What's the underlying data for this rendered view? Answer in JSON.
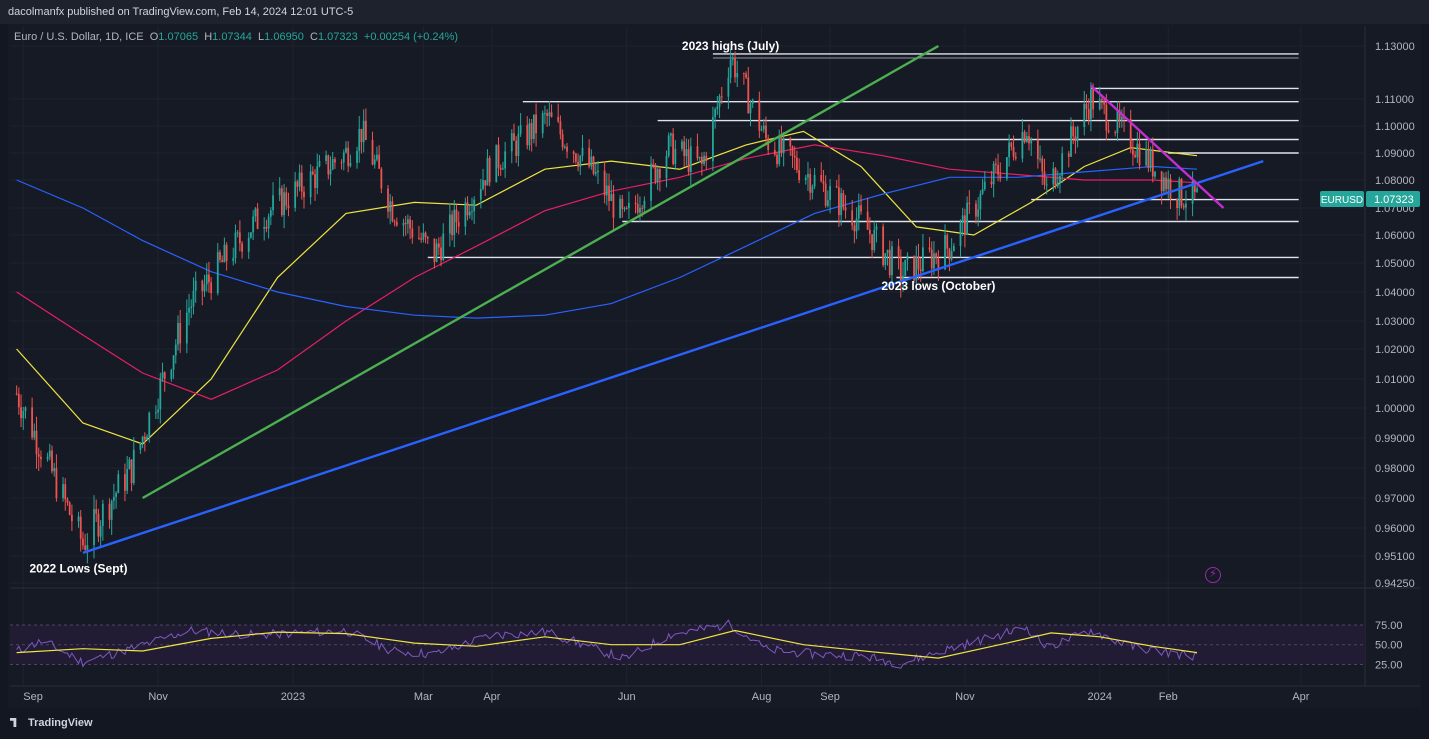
{
  "header": {
    "publisher_text": "dacolmanfx published on TradingView.com, Feb 14, 2024 12:01 UTC-5"
  },
  "symbol": {
    "description": "Euro / U.S. Dollar, 1D, ICE",
    "open_label": "O",
    "open": "1.07065",
    "high_label": "H",
    "high": "1.07344",
    "low_label": "L",
    "low": "1.06950",
    "close_label": "C",
    "close": "1.07323",
    "change": "+0.00254 (+0.24%)",
    "ticker": "EURUSD",
    "last_price": "1.07323"
  },
  "footer": {
    "brand": "TradingView"
  },
  "colors": {
    "background": "#131722",
    "grid": "#2a2e39",
    "candle_up": "#26a69a",
    "candle_down": "#ef5350",
    "ma_fast": "#f0e442",
    "ma_mid": "#e91e63",
    "ma_slow": "#2962ff",
    "trend_blue": "#2962ff",
    "trend_green": "#4caf50",
    "trend_magenta": "#c22ecf",
    "rsi": "#7e57c2",
    "rsi_signal": "#f0e442"
  },
  "chart_data": [
    {
      "type": "candlestick",
      "title": "Euro / U.S. Dollar, 1D, ICE",
      "x_tick_labels": [
        "Sep",
        "Nov",
        "2023",
        "Mar",
        "Apr",
        "Jun",
        "Aug",
        "Sep",
        "Nov",
        "2024",
        "Feb",
        "Apr"
      ],
      "x_tick_dates": [
        "2022-09-01",
        "2022-11-01",
        "2023-01-01",
        "2023-03-01",
        "2023-04-01",
        "2023-06-01",
        "2023-08-01",
        "2023-09-01",
        "2023-11-01",
        "2024-01-01",
        "2024-02-01",
        "2024-04-01"
      ],
      "y_tick_labels": [
        "1.13000",
        "1.11000",
        "1.10000",
        "1.09000",
        "1.08000",
        "1.07000",
        "1.06000",
        "1.05000",
        "1.04000",
        "1.03000",
        "1.02000",
        "1.01000",
        "1.00000",
        "0.99000",
        "0.98000",
        "0.97000",
        "0.96000",
        "0.95100",
        "0.94250"
      ],
      "y_ticks": [
        1.13,
        1.11,
        1.1,
        1.09,
        1.08,
        1.07,
        1.06,
        1.05,
        1.04,
        1.03,
        1.02,
        1.01,
        1.0,
        0.99,
        0.98,
        0.97,
        0.96,
        0.951,
        0.9425
      ],
      "price_key_points": [
        {
          "date": "2022-08-29",
          "close": 1.005
        },
        {
          "date": "2022-09-28",
          "close": 0.955
        },
        {
          "date": "2022-10-20",
          "close": 0.98
        },
        {
          "date": "2022-11-15",
          "close": 1.035
        },
        {
          "date": "2022-12-15",
          "close": 1.065
        },
        {
          "date": "2023-01-25",
          "close": 1.09
        },
        {
          "date": "2023-02-01",
          "close": 1.098
        },
        {
          "date": "2023-02-15",
          "close": 1.07
        },
        {
          "date": "2023-03-06",
          "close": 1.053
        },
        {
          "date": "2023-03-31",
          "close": 1.085
        },
        {
          "date": "2023-04-26",
          "close": 1.103
        },
        {
          "date": "2023-05-15",
          "close": 1.085
        },
        {
          "date": "2023-05-31",
          "close": 1.065
        },
        {
          "date": "2023-06-20",
          "close": 1.092
        },
        {
          "date": "2023-07-05",
          "close": 1.085
        },
        {
          "date": "2023-07-18",
          "close": 1.126
        },
        {
          "date": "2023-08-03",
          "close": 1.095
        },
        {
          "date": "2023-08-25",
          "close": 1.08
        },
        {
          "date": "2023-09-15",
          "close": 1.065
        },
        {
          "date": "2023-10-03",
          "close": 1.046
        },
        {
          "date": "2023-10-25",
          "close": 1.056
        },
        {
          "date": "2023-11-29",
          "close": 1.1
        },
        {
          "date": "2023-12-08",
          "close": 1.076
        },
        {
          "date": "2023-12-28",
          "close": 1.11
        },
        {
          "date": "2024-01-15",
          "close": 1.095
        },
        {
          "date": "2024-02-05",
          "close": 1.075
        },
        {
          "date": "2024-02-14",
          "close": 1.07323
        }
      ],
      "moving_averages": [
        {
          "name": "MA fast",
          "color": "#f0e442",
          "points": [
            {
              "date": "2022-08-29",
              "value": 1.02
            },
            {
              "date": "2022-09-28",
              "value": 0.995
            },
            {
              "date": "2022-10-25",
              "value": 0.988
            },
            {
              "date": "2022-11-25",
              "value": 1.01
            },
            {
              "date": "2022-12-25",
              "value": 1.045
            },
            {
              "date": "2023-01-25",
              "value": 1.068
            },
            {
              "date": "2023-02-25",
              "value": 1.072
            },
            {
              "date": "2023-03-25",
              "value": 1.071
            },
            {
              "date": "2023-04-25",
              "value": 1.084
            },
            {
              "date": "2023-05-25",
              "value": 1.087
            },
            {
              "date": "2023-06-25",
              "value": 1.084
            },
            {
              "date": "2023-07-25",
              "value": 1.093
            },
            {
              "date": "2023-08-20",
              "value": 1.098
            },
            {
              "date": "2023-09-15",
              "value": 1.085
            },
            {
              "date": "2023-10-10",
              "value": 1.063
            },
            {
              "date": "2023-11-05",
              "value": 1.06
            },
            {
              "date": "2023-12-01",
              "value": 1.072
            },
            {
              "date": "2023-12-25",
              "value": 1.085
            },
            {
              "date": "2024-01-15",
              "value": 1.092
            },
            {
              "date": "2024-02-14",
              "value": 1.089
            }
          ]
        },
        {
          "name": "MA mid",
          "color": "#e91e63",
          "points": [
            {
              "date": "2022-08-29",
              "value": 1.04
            },
            {
              "date": "2022-09-28",
              "value": 1.025
            },
            {
              "date": "2022-10-25",
              "value": 1.012
            },
            {
              "date": "2022-11-25",
              "value": 1.003
            },
            {
              "date": "2022-12-25",
              "value": 1.013
            },
            {
              "date": "2023-01-25",
              "value": 1.03
            },
            {
              "date": "2023-02-25",
              "value": 1.045
            },
            {
              "date": "2023-03-25",
              "value": 1.056
            },
            {
              "date": "2023-04-25",
              "value": 1.069
            },
            {
              "date": "2023-05-25",
              "value": 1.076
            },
            {
              "date": "2023-06-25",
              "value": 1.081
            },
            {
              "date": "2023-07-25",
              "value": 1.088
            },
            {
              "date": "2023-08-25",
              "value": 1.093
            },
            {
              "date": "2023-09-25",
              "value": 1.089
            },
            {
              "date": "2023-10-25",
              "value": 1.084
            },
            {
              "date": "2023-11-25",
              "value": 1.082
            },
            {
              "date": "2023-12-25",
              "value": 1.08
            },
            {
              "date": "2024-01-25",
              "value": 1.08
            },
            {
              "date": "2024-02-14",
              "value": 1.079
            }
          ]
        },
        {
          "name": "MA slow",
          "color": "#2962ff",
          "points": [
            {
              "date": "2022-08-29",
              "value": 1.08
            },
            {
              "date": "2022-09-28",
              "value": 1.07
            },
            {
              "date": "2022-10-25",
              "value": 1.058
            },
            {
              "date": "2022-11-25",
              "value": 1.047
            },
            {
              "date": "2022-12-25",
              "value": 1.04
            },
            {
              "date": "2023-01-25",
              "value": 1.035
            },
            {
              "date": "2023-02-25",
              "value": 1.032
            },
            {
              "date": "2023-03-25",
              "value": 1.031
            },
            {
              "date": "2023-04-25",
              "value": 1.032
            },
            {
              "date": "2023-05-25",
              "value": 1.036
            },
            {
              "date": "2023-06-25",
              "value": 1.045
            },
            {
              "date": "2023-07-25",
              "value": 1.056
            },
            {
              "date": "2023-08-25",
              "value": 1.068
            },
            {
              "date": "2023-09-25",
              "value": 1.075
            },
            {
              "date": "2023-10-25",
              "value": 1.081
            },
            {
              "date": "2023-11-25",
              "value": 1.081
            },
            {
              "date": "2023-12-25",
              "value": 1.083
            },
            {
              "date": "2024-01-25",
              "value": 1.085
            },
            {
              "date": "2024-02-14",
              "value": 1.084
            }
          ]
        }
      ],
      "trendlines": [
        {
          "color": "#2962ff",
          "from": {
            "date": "2022-09-28",
            "price": 0.952
          },
          "to": {
            "date": "2024-03-15",
            "price": 1.087
          }
        },
        {
          "color": "#4caf50",
          "from": {
            "date": "2022-10-25",
            "price": 0.97
          },
          "to": {
            "date": "2023-10-20",
            "price": 1.13
          }
        },
        {
          "color": "#c22ecf",
          "from": {
            "date": "2023-12-28",
            "price": 1.115
          },
          "to": {
            "date": "2024-02-26",
            "price": 1.07
          }
        }
      ],
      "horizontal_levels": [
        {
          "price": 1.127,
          "from": "2023-07-10",
          "to": "2024-03-31",
          "style": "double"
        },
        {
          "price": 1.114,
          "from": "2023-12-28",
          "to": "2024-03-31"
        },
        {
          "price": 1.109,
          "from": "2023-04-15",
          "to": "2024-03-31"
        },
        {
          "price": 1.102,
          "from": "2023-06-15",
          "to": "2024-03-31"
        },
        {
          "price": 1.095,
          "from": "2023-08-10",
          "to": "2024-03-31"
        },
        {
          "price": 1.09,
          "from": "2024-02-01",
          "to": "2024-03-31"
        },
        {
          "price": 1.073,
          "from": "2023-12-01",
          "to": "2024-03-31"
        },
        {
          "price": 1.065,
          "from": "2023-05-30",
          "to": "2024-03-31"
        },
        {
          "price": 1.052,
          "from": "2023-03-03",
          "to": "2024-03-31"
        },
        {
          "price": 1.045,
          "from": "2023-10-01",
          "to": "2024-03-31"
        }
      ],
      "annotations": [
        {
          "text": "2023 highs (July)",
          "date": "2023-07-18",
          "price": 1.13
        },
        {
          "text": "2023 lows (October)",
          "date": "2023-10-20",
          "price": 1.042
        },
        {
          "text": "2022 Lows (Sept)",
          "date": "2022-09-26",
          "price": 0.947
        }
      ]
    },
    {
      "type": "line",
      "title": "",
      "y_tick_labels": [
        "75.00",
        "50.00",
        "25.00"
      ],
      "y_ticks": [
        75,
        50,
        25
      ],
      "ylim": [
        18,
        80
      ],
      "series": [
        {
          "color": "#7e57c2",
          "points": [
            {
              "date": "2022-08-29",
              "value": 42
            },
            {
              "date": "2022-09-10",
              "value": 55
            },
            {
              "date": "2022-09-28",
              "value": 28
            },
            {
              "date": "2022-10-20",
              "value": 45
            },
            {
              "date": "2022-11-15",
              "value": 68
            },
            {
              "date": "2022-12-15",
              "value": 62
            },
            {
              "date": "2023-01-25",
              "value": 68
            },
            {
              "date": "2023-02-15",
              "value": 42
            },
            {
              "date": "2023-03-06",
              "value": 38
            },
            {
              "date": "2023-04-01",
              "value": 62
            },
            {
              "date": "2023-04-26",
              "value": 66
            },
            {
              "date": "2023-05-31",
              "value": 32
            },
            {
              "date": "2023-06-20",
              "value": 62
            },
            {
              "date": "2023-07-18",
              "value": 76
            },
            {
              "date": "2023-08-03",
              "value": 44
            },
            {
              "date": "2023-08-25",
              "value": 38
            },
            {
              "date": "2023-09-15",
              "value": 36
            },
            {
              "date": "2023-10-03",
              "value": 26
            },
            {
              "date": "2023-10-25",
              "value": 45
            },
            {
              "date": "2023-11-29",
              "value": 72
            },
            {
              "date": "2023-12-08",
              "value": 46
            },
            {
              "date": "2023-12-28",
              "value": 68
            },
            {
              "date": "2024-01-15",
              "value": 48
            },
            {
              "date": "2024-02-05",
              "value": 38
            },
            {
              "date": "2024-02-14",
              "value": 36
            }
          ]
        },
        {
          "color": "#f0e442",
          "points": [
            {
              "date": "2022-08-29",
              "value": 40
            },
            {
              "date": "2022-09-28",
              "value": 45
            },
            {
              "date": "2022-10-25",
              "value": 42
            },
            {
              "date": "2022-11-25",
              "value": 58
            },
            {
              "date": "2022-12-25",
              "value": 66
            },
            {
              "date": "2023-01-25",
              "value": 64
            },
            {
              "date": "2023-02-25",
              "value": 52
            },
            {
              "date": "2023-03-25",
              "value": 48
            },
            {
              "date": "2023-04-25",
              "value": 60
            },
            {
              "date": "2023-05-25",
              "value": 50
            },
            {
              "date": "2023-06-25",
              "value": 50
            },
            {
              "date": "2023-07-20",
              "value": 68
            },
            {
              "date": "2023-08-20",
              "value": 50
            },
            {
              "date": "2023-09-20",
              "value": 41
            },
            {
              "date": "2023-10-20",
              "value": 33
            },
            {
              "date": "2023-11-20",
              "value": 52
            },
            {
              "date": "2023-12-10",
              "value": 65
            },
            {
              "date": "2024-01-01",
              "value": 60
            },
            {
              "date": "2024-01-25",
              "value": 48
            },
            {
              "date": "2024-02-14",
              "value": 40
            }
          ]
        }
      ]
    }
  ]
}
